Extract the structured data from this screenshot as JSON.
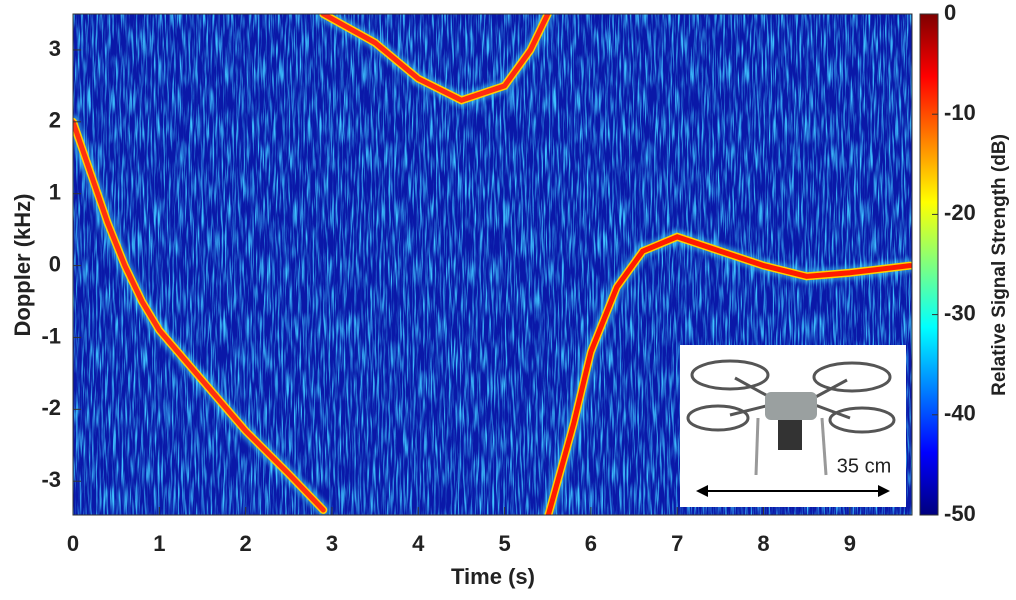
{
  "chart_data": {
    "type": "spectrogram",
    "xlabel": "Time (s)",
    "ylabel": "Doppler (kHz)",
    "xlim": [
      0,
      9.72
    ],
    "xticks": [
      0,
      1,
      2,
      3,
      4,
      5,
      6,
      7,
      8,
      9
    ],
    "ylim": [
      -3.47,
      3.5
    ],
    "yticks": [
      -3,
      -2,
      -1,
      0,
      1,
      2,
      3
    ],
    "colorbar": {
      "label": "Relative Signal Strength (dB)",
      "clim": [
        -50,
        0
      ],
      "ticks": [
        -50,
        -40,
        -30,
        -20,
        -10,
        0
      ],
      "colormap": [
        "#00007f",
        "#0000ff",
        "#007fff",
        "#00ffff",
        "#7fff7f",
        "#ffff00",
        "#ff7f00",
        "#ff0000",
        "#7f0000"
      ]
    },
    "series": [
      {
        "color": "#ff3010",
        "x": [
          0,
          0.2,
          0.4,
          0.6,
          0.8,
          1.0,
          1.5,
          2.0,
          2.5,
          2.9
        ],
        "values": [
          2.0,
          1.3,
          0.6,
          0.0,
          -0.5,
          -0.9,
          -1.6,
          -2.3,
          -2.9,
          -3.4
        ]
      },
      {
        "color": "#ff2a10",
        "x": [
          2.9,
          3.5,
          4.0,
          4.5,
          5.0,
          5.3,
          5.5
        ],
        "values": [
          3.5,
          3.1,
          2.6,
          2.3,
          2.5,
          3.0,
          3.5
        ]
      },
      {
        "color": "#ff1a00",
        "x": [
          5.5,
          5.8,
          6.0,
          6.3,
          6.6,
          7.0,
          7.5,
          8.0,
          8.5,
          9.0,
          9.7
        ],
        "values": [
          -3.5,
          -2.2,
          -1.2,
          -0.3,
          0.2,
          0.4,
          0.2,
          0.0,
          -0.15,
          -0.1,
          0.0
        ]
      }
    ],
    "annotations": [
      "35 cm"
    ]
  }
}
